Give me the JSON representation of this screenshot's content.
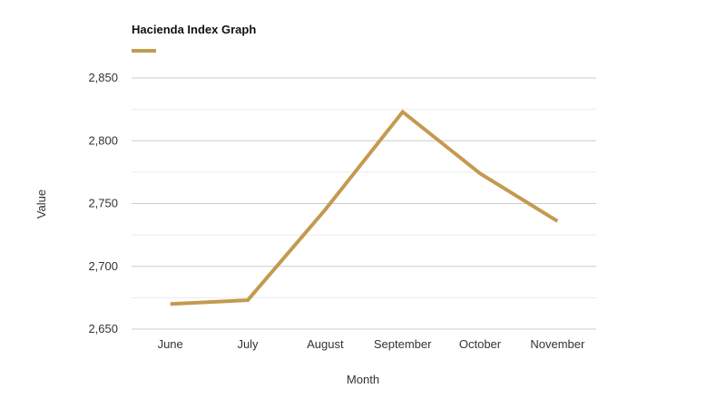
{
  "chart_data": {
    "type": "line",
    "title": "Hacienda Index Graph",
    "xlabel": "Month",
    "ylabel": "Value",
    "categories": [
      "June",
      "July",
      "August",
      "September",
      "October",
      "November"
    ],
    "series": [
      {
        "values": [
          2670,
          2673,
          2745,
          2823,
          2774,
          2736
        ],
        "color": "#C49A50"
      }
    ],
    "ylim": [
      2650,
      2850
    ],
    "yticks": [
      2650,
      2700,
      2750,
      2800,
      2850
    ],
    "ytick_labels": [
      "2,650",
      "2,700",
      "2,750",
      "2,800",
      "2,850"
    ],
    "grid": true,
    "minor_grid": true,
    "legend": "top-left",
    "colors": {
      "line": "#C49A50",
      "grid_major": "#cccccc",
      "grid_minor": "#ebebeb"
    }
  }
}
